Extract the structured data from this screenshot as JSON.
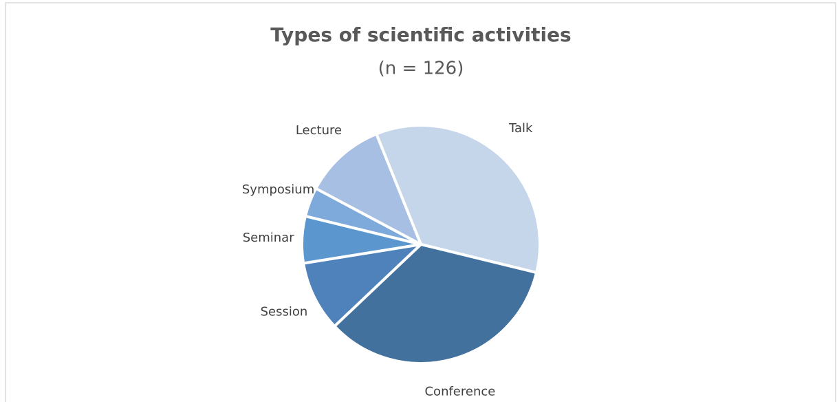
{
  "chart_data": {
    "type": "pie",
    "title": "Types of scientific activities",
    "subtitle": "(n = 126)",
    "categories": [
      "Talk",
      "Conference",
      "Session",
      "Seminar",
      "Symposium",
      "Lecture"
    ],
    "values": [
      44,
      43,
      12,
      8,
      5,
      14
    ],
    "colors": [
      "#c5d5ea",
      "#41719c",
      "#4f82ba",
      "#5b96cf",
      "#7eaadb",
      "#a6bfe3"
    ]
  }
}
